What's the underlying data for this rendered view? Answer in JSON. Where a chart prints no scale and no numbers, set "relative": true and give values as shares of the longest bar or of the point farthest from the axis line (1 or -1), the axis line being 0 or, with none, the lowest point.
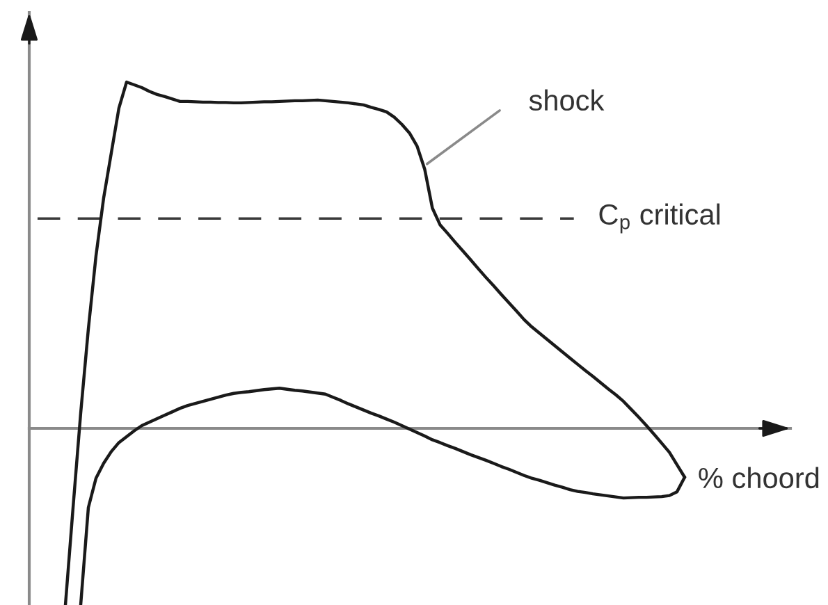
{
  "chart_data": {
    "type": "line",
    "relative": true,
    "xlabel": "% choord",
    "categories": [
      null,
      null,
      null,
      null,
      null,
      null,
      null,
      null,
      null,
      null,
      null,
      null,
      null,
      null,
      null,
      null,
      null,
      null,
      null,
      null,
      null,
      null,
      null,
      null,
      null,
      null,
      null,
      null,
      null,
      null,
      null,
      null,
      null,
      null,
      null,
      null,
      null,
      null,
      null,
      null,
      null,
      null,
      null,
      null,
      null,
      null,
      null,
      null,
      null,
      null,
      null,
      null,
      null,
      null,
      null,
      null,
      null,
      null,
      null,
      null,
      null,
      null,
      null,
      null,
      null,
      null,
      null,
      null,
      null,
      null,
      null,
      null,
      null,
      null,
      null,
      null,
      null,
      null,
      null,
      null,
      null,
      null
    ],
    "series": [
      {
        "color": "#1a1a1a",
        "values": [
          -0.51,
          -0.229,
          0.044,
          0.287,
          0.498,
          0.665,
          0.795,
          0.925,
          1.0,
          0.992,
          0.984,
          0.973,
          0.964,
          0.958,
          0.951,
          0.944,
          0.944,
          0.943,
          0.942,
          0.942,
          0.941,
          0.941,
          0.94,
          0.94,
          0.941,
          0.942,
          0.943,
          0.943,
          0.944,
          0.945,
          0.946,
          0.946,
          0.947,
          0.948,
          0.946,
          0.944,
          0.942,
          0.94,
          0.937,
          0.934,
          0.927,
          0.921,
          0.914,
          0.899,
          0.878,
          0.853,
          0.815,
          0.748,
          0.636,
          0.588,
          0.563,
          0.537,
          0.512,
          0.487,
          0.461,
          0.436,
          0.412,
          0.387,
          0.363,
          0.339,
          0.314,
          0.293,
          0.275,
          0.257,
          0.239,
          0.221,
          0.203,
          0.185,
          0.167,
          0.15,
          0.132,
          0.114,
          0.097,
          0.078,
          0.055,
          0.032,
          0.008,
          -0.017,
          -0.043,
          -0.069,
          -0.105,
          -0.141
        ]
      },
      {
        "color": "#1a1a1a",
        "values": [
          null,
          null,
          -0.51,
          -0.229,
          -0.144,
          -0.101,
          -0.067,
          -0.041,
          -0.024,
          -0.007,
          0.008,
          0.018,
          0.028,
          0.038,
          0.048,
          0.058,
          0.066,
          0.072,
          0.078,
          0.084,
          0.09,
          0.096,
          0.101,
          0.104,
          0.106,
          0.109,
          0.112,
          0.114,
          0.116,
          0.113,
          0.11,
          0.108,
          0.105,
          0.102,
          0.099,
          0.09,
          0.081,
          0.071,
          0.062,
          0.053,
          0.044,
          0.036,
          0.027,
          0.018,
          0.008,
          -0.002,
          -0.012,
          -0.022,
          -0.033,
          -0.041,
          -0.05,
          -0.058,
          -0.067,
          -0.076,
          -0.084,
          -0.092,
          -0.101,
          -0.11,
          -0.118,
          -0.127,
          -0.136,
          -0.144,
          -0.15,
          -0.157,
          -0.164,
          -0.17,
          -0.177,
          -0.182,
          -0.185,
          -0.189,
          -0.192,
          -0.195,
          -0.198,
          -0.201,
          -0.2,
          -0.199,
          -0.199,
          -0.198,
          -0.197,
          -0.194,
          -0.183,
          -0.141
        ]
      }
    ],
    "ref_lines": [
      {
        "axis": "y",
        "value": 0.606,
        "label": "C$_{p}$ critical",
        "color": "#3a3a3a",
        "line_style": "dashed"
      }
    ],
    "annotations": [
      "shock"
    ]
  }
}
